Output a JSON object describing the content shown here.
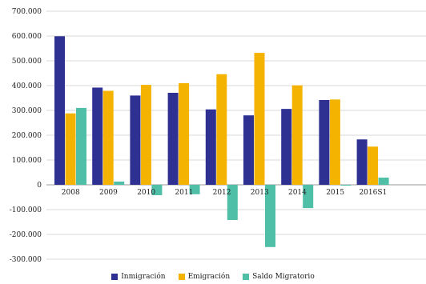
{
  "chart_data": {
    "type": "bar",
    "categories": [
      "2008",
      "2009",
      "2010",
      "2011",
      "2012",
      "2013",
      "2014",
      "2015",
      "2016S1"
    ],
    "series": [
      {
        "name": "Inmigración",
        "color": "#2e3192",
        "values": [
          599000,
          392000,
          360000,
          371000,
          304000,
          280000,
          306000,
          342000,
          183000
        ]
      },
      {
        "name": "Emigración",
        "color": "#f5b301",
        "values": [
          288000,
          379000,
          403000,
          410000,
          446000,
          532000,
          401000,
          344000,
          154000
        ]
      },
      {
        "name": "Saldo Migratorio",
        "color": "#4fbfa8",
        "values": [
          310000,
          13000,
          -42000,
          -38000,
          -142000,
          -251000,
          -94000,
          -2000,
          29000
        ]
      }
    ],
    "ylim": [
      -300000,
      700000
    ],
    "yticks": [
      "700.000",
      "600.000",
      "500.000",
      "400.000",
      "300.000",
      "200.000",
      "100.000",
      "0",
      "-100.000",
      "-200.000",
      "-300.000"
    ],
    "grid": true,
    "legend": "bottom"
  }
}
